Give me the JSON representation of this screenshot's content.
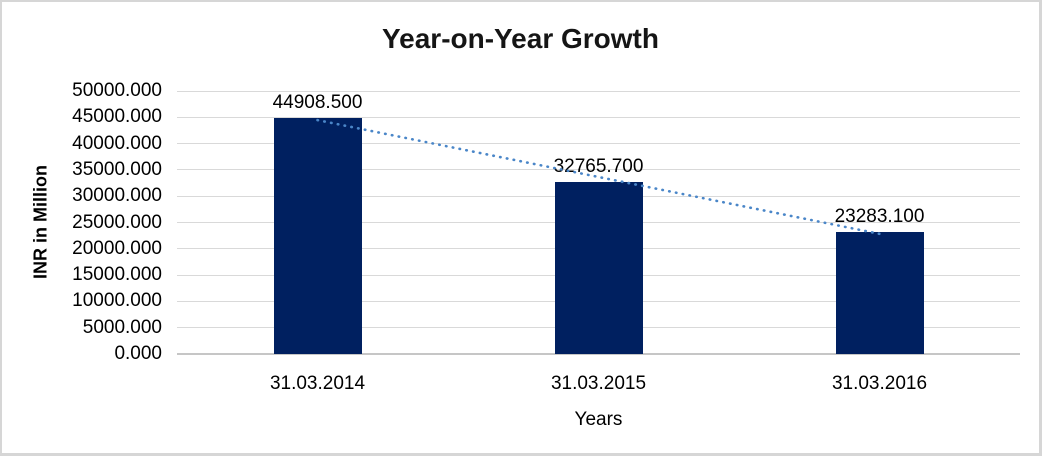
{
  "window": {
    "background": "#ffffff",
    "border_color": "#d6d6d6"
  },
  "chart_data": {
    "type": "bar",
    "title": "Year-on-Year Growth",
    "xlabel": "Years",
    "ylabel": "INR in Million",
    "categories": [
      "31.03.2014",
      "31.03.2015",
      "31.03.2016"
    ],
    "values": [
      44908.5,
      32765.7,
      23283.1
    ],
    "data_labels": [
      "44908.500",
      "32765.700",
      "23283.100"
    ],
    "ylim": [
      0,
      50000
    ],
    "ytick_step": 5000,
    "ytick_labels": [
      "50000.000",
      "45000.000",
      "40000.000",
      "35000.000",
      "30000.000",
      "25000.000",
      "20000.000",
      "15000.000",
      "10000.000",
      "5000.000",
      "0.000"
    ],
    "grid": true,
    "legend": "none",
    "bar_color": "#002060",
    "gridline_color": "#d9d9d9",
    "axis_line_color": "#c6c6c6",
    "trendline": {
      "type": "linear",
      "style": "dotted",
      "color": "#4a86c8"
    }
  }
}
